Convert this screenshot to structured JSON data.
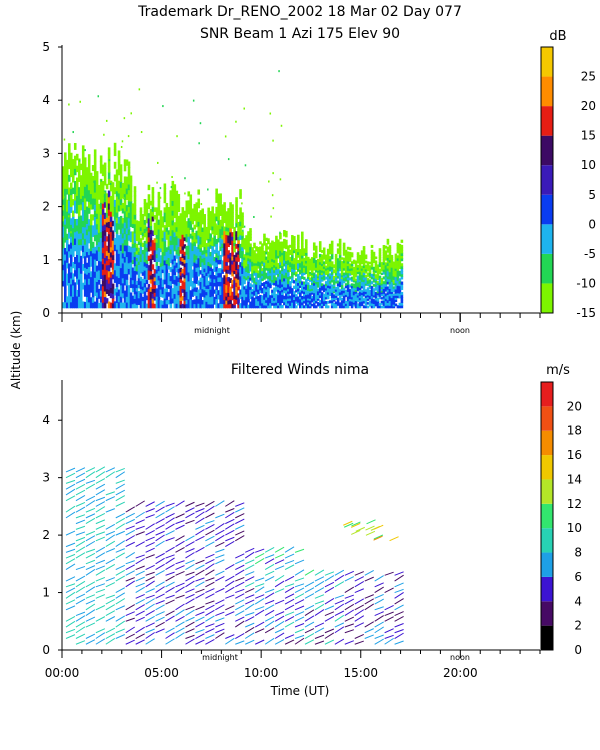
{
  "header": {
    "line1": "Trademark Dr_RENO_2002  18 Mar 02 Day 077",
    "line2": "SNR Beam 1 Azi 175 Elev 90"
  },
  "shared": {
    "ylabel": "Altitude (km)",
    "xlabel": "Time (UT)",
    "markers": [
      "midnight",
      "noon"
    ],
    "x_ticklabels": [
      "00:00",
      "05:00",
      "10:00",
      "15:00",
      "20:00"
    ]
  },
  "chart_data": [
    {
      "type": "heatmap",
      "title": "SNR Beam 1 Azi 175 Elev 90",
      "xlabel": "Time (UT)",
      "ylabel": "Altitude (km)",
      "xlim": [
        0,
        24
      ],
      "ylim": [
        0,
        5
      ],
      "y_ticks": [
        0,
        1,
        2,
        3,
        4,
        5
      ],
      "colorbar": {
        "unit": "dB",
        "range": [
          -15,
          30
        ],
        "ticks": [
          -15,
          -10,
          -5,
          0,
          5,
          10,
          15,
          20,
          25
        ],
        "colors": [
          "#7df500",
          "#22d654",
          "#1eb4ee",
          "#0a3cf0",
          "#3a1ab8",
          "#3c0a64",
          "#e61e14",
          "#ff8c00",
          "#f5c800"
        ]
      },
      "data_extent_hours": [
        0,
        17
      ]
    },
    {
      "type": "scatter",
      "title": "Filtered Winds nima",
      "xlabel": "Time (UT)",
      "ylabel": "Altitude (km)",
      "xlim": [
        0,
        24
      ],
      "ylim": [
        0,
        4.7
      ],
      "y_ticks": [
        0,
        1,
        2,
        3,
        4
      ],
      "colorbar": {
        "unit": "m/s",
        "range": [
          0,
          22
        ],
        "ticks": [
          0,
          2,
          4,
          6,
          8,
          10,
          12,
          14,
          16,
          18,
          20
        ],
        "colors": [
          "#000000",
          "#460a64",
          "#3c14d2",
          "#1ea0e6",
          "#28d2b4",
          "#32e66e",
          "#b4e628",
          "#f0c800",
          "#f58c00",
          "#f05014",
          "#e61e1e"
        ]
      },
      "data_extent_hours": [
        0,
        17
      ]
    }
  ]
}
